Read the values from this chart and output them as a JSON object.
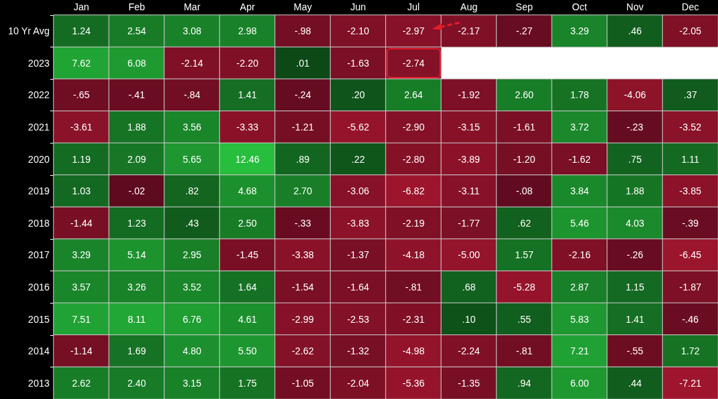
{
  "chart_data": {
    "type": "heatmap",
    "categories": [
      "Jan",
      "Feb",
      "Mar",
      "Apr",
      "May",
      "Jun",
      "Jul",
      "Aug",
      "Sep",
      "Oct",
      "Nov",
      "Dec"
    ],
    "y_categories": [
      "10 Yr Avg",
      "2023",
      "2022",
      "2021",
      "2020",
      "2019",
      "2018",
      "2017",
      "2016",
      "2015",
      "2014",
      "2013"
    ],
    "cells": [
      [
        1.24,
        2.54,
        3.08,
        2.98,
        -0.98,
        -2.1,
        -2.97,
        -2.17,
        -0.27,
        3.29,
        0.46,
        -2.05
      ],
      [
        7.62,
        6.08,
        -2.14,
        -2.2,
        0.01,
        -1.63,
        -2.74,
        null,
        null,
        null,
        null,
        null
      ],
      [
        -0.65,
        -0.41,
        -0.84,
        1.41,
        -0.24,
        0.2,
        2.64,
        -1.92,
        2.6,
        1.78,
        -4.06,
        0.37
      ],
      [
        -3.61,
        1.88,
        3.56,
        -3.33,
        -1.21,
        -5.62,
        -2.9,
        -3.15,
        -1.61,
        3.72,
        -0.23,
        -3.52
      ],
      [
        1.19,
        2.09,
        5.65,
        12.46,
        0.89,
        0.22,
        -2.8,
        -3.89,
        -1.2,
        -1.62,
        0.75,
        1.11
      ],
      [
        1.03,
        -0.02,
        0.82,
        4.68,
        2.7,
        -3.06,
        -6.82,
        -3.11,
        -0.08,
        3.84,
        1.88,
        -3.85
      ],
      [
        -1.44,
        1.23,
        0.43,
        2.5,
        -0.33,
        -3.83,
        -2.19,
        -1.77,
        0.62,
        5.46,
        4.03,
        -0.39
      ],
      [
        3.29,
        5.14,
        2.95,
        -1.45,
        -3.38,
        -1.37,
        -4.18,
        -5.0,
        1.57,
        -2.16,
        -0.26,
        -6.45
      ],
      [
        3.57,
        3.26,
        3.52,
        1.64,
        -1.54,
        -1.64,
        -0.81,
        0.68,
        -5.28,
        2.87,
        1.15,
        -1.87
      ],
      [
        7.51,
        8.11,
        6.76,
        4.61,
        -2.99,
        -2.53,
        -2.31,
        0.1,
        0.55,
        5.83,
        1.41,
        -0.46
      ],
      [
        -1.14,
        1.69,
        4.8,
        5.5,
        -2.62,
        -1.32,
        -4.98,
        -2.24,
        -0.81,
        7.21,
        -0.55,
        1.72
      ],
      [
        2.62,
        2.4,
        3.15,
        1.75,
        -1.05,
        -2.04,
        -5.36,
        -1.35,
        0.94,
        6.0,
        0.44,
        -7.21
      ]
    ],
    "cell_labels": [
      [
        "1.24",
        "2.54",
        "3.08",
        "2.98",
        "-.98",
        "-2.10",
        "-2.97",
        "-2.17",
        "-.27",
        "3.29",
        ".46",
        "-2.05"
      ],
      [
        "7.62",
        "6.08",
        "-2.14",
        "-2.20",
        ".01",
        "-1.63",
        "-2.74",
        null,
        null,
        null,
        null,
        null
      ],
      [
        "-.65",
        "-.41",
        "-.84",
        "1.41",
        "-.24",
        ".20",
        "2.64",
        "-1.92",
        "2.60",
        "1.78",
        "-4.06",
        ".37"
      ],
      [
        "-3.61",
        "1.88",
        "3.56",
        "-3.33",
        "-1.21",
        "-5.62",
        "-2.90",
        "-3.15",
        "-1.61",
        "3.72",
        "-.23",
        "-3.52"
      ],
      [
        "1.19",
        "2.09",
        "5.65",
        "12.46",
        ".89",
        ".22",
        "-2.80",
        "-3.89",
        "-1.20",
        "-1.62",
        ".75",
        "1.11"
      ],
      [
        "1.03",
        "-.02",
        ".82",
        "4.68",
        "2.70",
        "-3.06",
        "-6.82",
        "-3.11",
        "-.08",
        "3.84",
        "1.88",
        "-3.85"
      ],
      [
        "-1.44",
        "1.23",
        ".43",
        "2.50",
        "-.33",
        "-3.83",
        "-2.19",
        "-1.77",
        ".62",
        "5.46",
        "4.03",
        "-.39"
      ],
      [
        "3.29",
        "5.14",
        "2.95",
        "-1.45",
        "-3.38",
        "-1.37",
        "-4.18",
        "-5.00",
        "1.57",
        "-2.16",
        "-.26",
        "-6.45"
      ],
      [
        "3.57",
        "3.26",
        "3.52",
        "1.64",
        "-1.54",
        "-1.64",
        "-.81",
        ".68",
        "-5.28",
        "2.87",
        "1.15",
        "-1.87"
      ],
      [
        "7.51",
        "8.11",
        "6.76",
        "4.61",
        "-2.99",
        "-2.53",
        "-2.31",
        ".10",
        ".55",
        "5.83",
        "1.41",
        "-.46"
      ],
      [
        "-1.14",
        "1.69",
        "4.80",
        "5.50",
        "-2.62",
        "-1.32",
        "-4.98",
        "-2.24",
        "-.81",
        "7.21",
        "-.55",
        "1.72"
      ],
      [
        "2.62",
        "2.40",
        "3.15",
        "1.75",
        "-1.05",
        "-2.04",
        "-5.36",
        "-1.35",
        ".94",
        "6.00",
        ".44",
        "-7.21"
      ]
    ]
  }
}
